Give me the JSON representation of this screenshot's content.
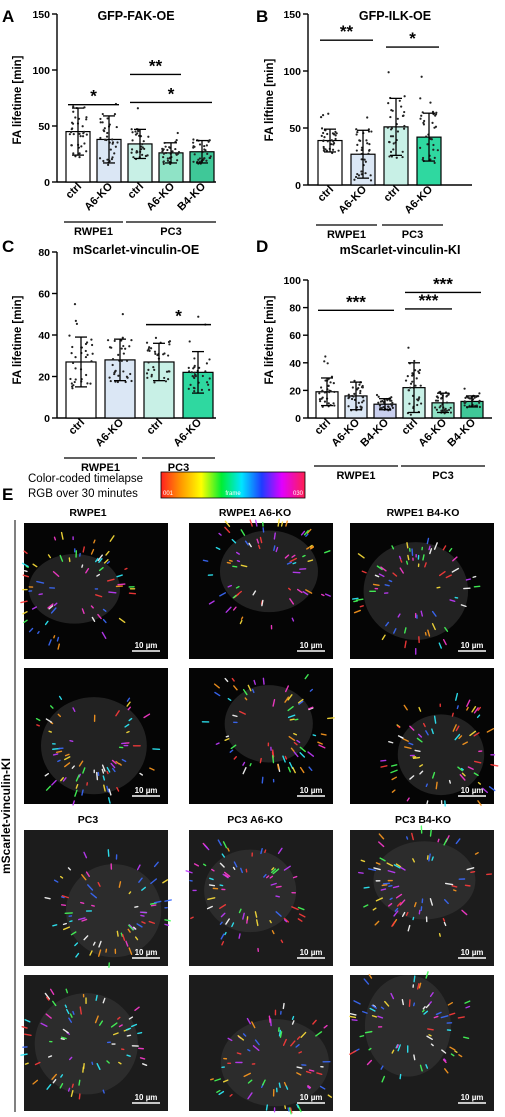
{
  "panel_letters": {
    "a": "A",
    "b": "B",
    "c": "C",
    "d": "D",
    "e": "E"
  },
  "y_axis_label_a": "FA lifetime [min]",
  "y_axis_label_b": "FA liftime [min]",
  "y_axis_label_c": "FA lifetime [min]",
  "y_axis_label_d": "FA lifetime [min]",
  "sig_labels": {
    "one": "*",
    "two": "**",
    "three": "***"
  },
  "colorbar": {
    "line1": "Color-coded timelapse",
    "line2": "RGB over 30 minutes",
    "start": "001",
    "mid": "frame",
    "end": "030"
  },
  "image_grid": {
    "side_label": "mScarlet-vinculin-KI",
    "scale_label": "10 µm",
    "top_titles": [
      "RWPE1",
      "RWPE1 A6-KO",
      "RWPE1 B4-KO"
    ],
    "bottom_titles": [
      "PC3",
      "PC3 A6-KO",
      "PC3 B4-KO"
    ]
  },
  "chart_data": [
    {
      "type": "bar",
      "panel": "A",
      "title": "GFP-FAK-OE",
      "ylabel": "FA lifetime [min]",
      "ylim": [
        0,
        150
      ],
      "yticks": [
        0,
        50,
        100,
        150
      ],
      "categories": [
        "ctrl",
        "A6-KO",
        "ctrl",
        "A6-KO",
        "B4-KO"
      ],
      "groups": [
        {
          "name": "RWPE1",
          "bars": [
            0,
            1
          ]
        },
        {
          "name": "PC3",
          "bars": [
            2,
            3,
            4
          ]
        }
      ],
      "values": [
        45,
        38,
        34,
        26,
        27
      ],
      "errors": [
        21,
        21,
        13,
        9,
        10
      ],
      "bar_colors": [
        "#ffffff",
        "#dbe7f5",
        "#c8f0e6",
        "#8fe3c6",
        "#3fc898"
      ],
      "significance": [
        {
          "from": 0,
          "to": 1,
          "label": "*"
        },
        {
          "from": 2,
          "to": 3,
          "label": "**"
        },
        {
          "from": 2,
          "to": 4,
          "label": "*"
        }
      ]
    },
    {
      "type": "bar",
      "panel": "B",
      "title": "GFP-ILK-OE",
      "ylabel": "FA liftime [min]",
      "ylim": [
        0,
        150
      ],
      "yticks": [
        0,
        50,
        100,
        150
      ],
      "categories": [
        "ctrl",
        "A6-KO",
        "ctrl",
        "A6-KO"
      ],
      "groups": [
        {
          "name": "RWPE1",
          "bars": [
            0,
            1
          ]
        },
        {
          "name": "PC3",
          "bars": [
            2,
            3
          ]
        }
      ],
      "values": [
        39,
        27,
        51,
        42
      ],
      "errors": [
        10,
        21,
        25,
        21
      ],
      "bar_colors": [
        "#ffffff",
        "#dbe7f5",
        "#c8f0e6",
        "#2fd8a0"
      ],
      "significance": [
        {
          "from": 0,
          "to": 1,
          "label": "**"
        },
        {
          "from": 2,
          "to": 3,
          "label": "*"
        }
      ]
    },
    {
      "type": "bar",
      "panel": "C",
      "title": "mScarlet-vinculin-OE",
      "ylabel": "FA lifetime [min]",
      "ylim": [
        0,
        80
      ],
      "yticks": [
        0,
        20,
        40,
        60,
        80
      ],
      "categories": [
        "ctrl",
        "A6-KO",
        "ctrl",
        "A6-KO"
      ],
      "groups": [
        {
          "name": "RWPE1",
          "bars": [
            0,
            1
          ]
        },
        {
          "name": "PC3",
          "bars": [
            2,
            3
          ]
        }
      ],
      "values": [
        27,
        28,
        27,
        22
      ],
      "errors": [
        12,
        10,
        9,
        10
      ],
      "bar_colors": [
        "#ffffff",
        "#dbe7f5",
        "#c8f0e6",
        "#2fd8a0"
      ],
      "significance": [
        {
          "from": 2,
          "to": 3,
          "label": "*"
        }
      ]
    },
    {
      "type": "bar",
      "panel": "D",
      "title": "mScarlet-vinculin-KI",
      "ylabel": "FA lifetime [min]",
      "ylim": [
        0,
        100
      ],
      "yticks": [
        0,
        20,
        40,
        60,
        80,
        100
      ],
      "categories": [
        "ctrl",
        "A6-KO",
        "B4-KO",
        "ctrl",
        "A6-KO",
        "B4-KO"
      ],
      "groups": [
        {
          "name": "RWPE1",
          "bars": [
            0,
            1,
            2
          ]
        },
        {
          "name": "PC3",
          "bars": [
            3,
            4,
            5
          ]
        }
      ],
      "values": [
        19,
        16,
        10,
        22,
        11,
        12
      ],
      "errors": [
        10,
        10,
        4,
        18,
        7,
        4
      ],
      "bar_colors": [
        "#ffffff",
        "#dbe7f5",
        "#c9cfee",
        "#c8f0e6",
        "#8fe3c6",
        "#3fc898"
      ],
      "significance": [
        {
          "from": 0,
          "to": 2,
          "label": "***"
        },
        {
          "from": 3,
          "to": 4,
          "label": "***"
        },
        {
          "from": 3,
          "to": 5,
          "label": "***"
        }
      ]
    }
  ]
}
